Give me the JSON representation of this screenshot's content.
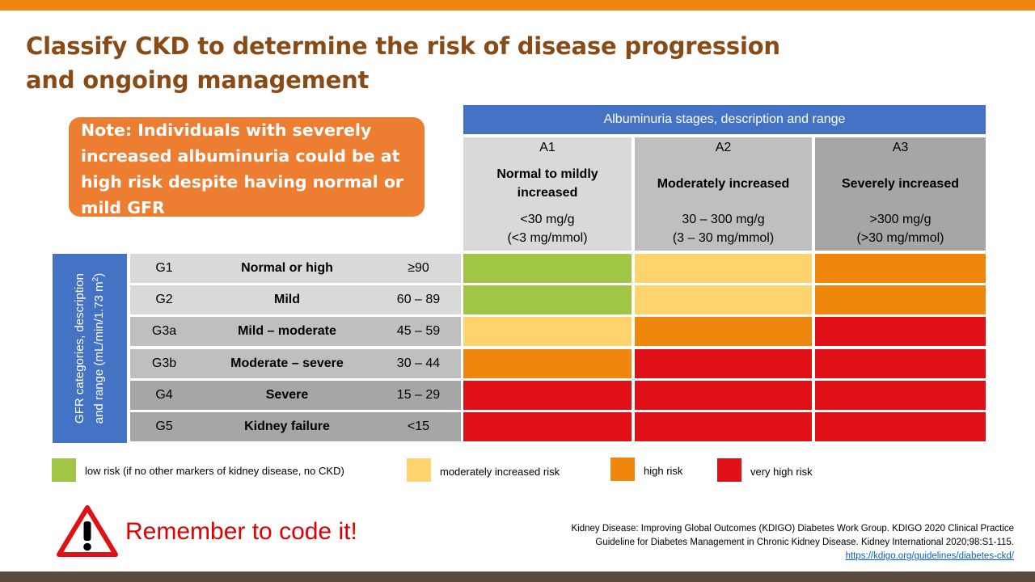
{
  "title": {
    "line1": "Classify CKD to determine the risk of disease progression",
    "line2": "and ongoing management"
  },
  "note": {
    "line1": "Note: Individuals with severely",
    "line2": "increased albuminuria could be at",
    "line3": "high risk despite having normal or",
    "line4": "mild GFR"
  },
  "albuminuria": {
    "header": "Albuminuria stages, description and range",
    "stages": [
      {
        "code": "A1",
        "desc_line1": "Normal to mildly",
        "desc_line2": "increased",
        "range_line1": "<30 mg/g",
        "range_line2": "(<3 mg/mmol)"
      },
      {
        "code": "A2",
        "desc_line1": "Moderately increased",
        "desc_line2": "",
        "range_line1": "30 – 300 mg/g",
        "range_line2": "(3 – 30 mg/mmol)"
      },
      {
        "code": "A3",
        "desc_line1": "Severely increased",
        "desc_line2": "",
        "range_line1": ">300 mg/g",
        "range_line2": "(>30 mg/mmol)"
      }
    ]
  },
  "gfr": {
    "side_label_line1": "GFR categories, description",
    "side_label_line2": "and range (mL/min/1.73 m",
    "side_label_sup": "2",
    "side_label_close": ")",
    "rows": [
      {
        "code": "G1",
        "desc": "Normal or high",
        "range": "≥90",
        "risk": [
          "low",
          "moderate",
          "high"
        ]
      },
      {
        "code": "G2",
        "desc": "Mild",
        "range": "60 – 89",
        "risk": [
          "low",
          "moderate",
          "high"
        ]
      },
      {
        "code": "G3a",
        "desc": "Mild – moderate",
        "range": "45 – 59",
        "risk": [
          "moderate",
          "high",
          "very_high"
        ]
      },
      {
        "code": "G3b",
        "desc": "Moderate – severe",
        "range": "30 – 44",
        "risk": [
          "high",
          "very_high",
          "very_high"
        ]
      },
      {
        "code": "G4",
        "desc": "Severe",
        "range": "15 – 29",
        "risk": [
          "very_high",
          "very_high",
          "very_high"
        ]
      },
      {
        "code": "G5",
        "desc": "Kidney failure",
        "range": "<15",
        "risk": [
          "very_high",
          "very_high",
          "very_high"
        ]
      }
    ]
  },
  "risk_colors": {
    "low": "#a1c544",
    "moderate": "#fdd36e",
    "high": "#f0870d",
    "very_high": "#e01016"
  },
  "legend": {
    "low": "low risk (if no other markers of kidney disease, no CKD)",
    "moderate": "moderately increased risk",
    "high": "high risk",
    "very_high": "very high risk"
  },
  "warning": {
    "icon": "warning-triangle-icon",
    "text": "Remember to code it!"
  },
  "citation": {
    "line1": "Kidney Disease: Improving Global Outcomes (KDIGO) Diabetes Work Group. KDIGO 2020 Clinical Practice",
    "line2": "Guideline for Diabetes Management  in Chronic Kidney Disease. Kidney International 2020;98:S1-115.",
    "link": "https://kdigo.org/guidelines/diabetes-ckd/"
  }
}
